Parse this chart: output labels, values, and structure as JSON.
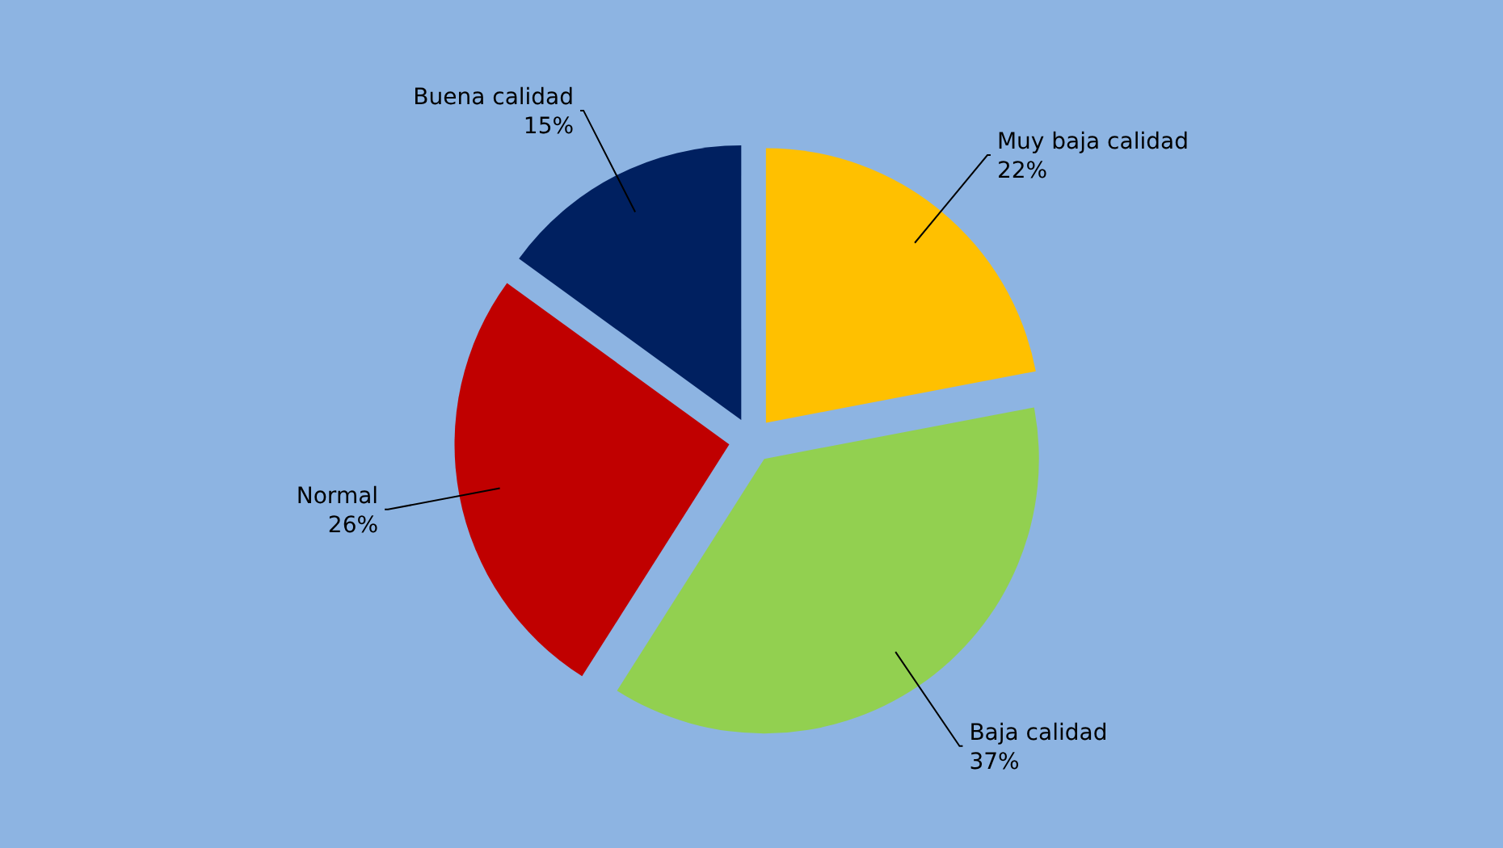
{
  "chart_data": {
    "type": "pie",
    "categories": [
      "Muy baja calidad",
      "Baja calidad",
      "Normal",
      "Buena calidad"
    ],
    "values": [
      22,
      37,
      26,
      15
    ],
    "value_labels": [
      "22%",
      "37%",
      "26%",
      "15%"
    ],
    "colors": [
      "#ffc000",
      "#92d050",
      "#c00000",
      "#002060"
    ]
  }
}
